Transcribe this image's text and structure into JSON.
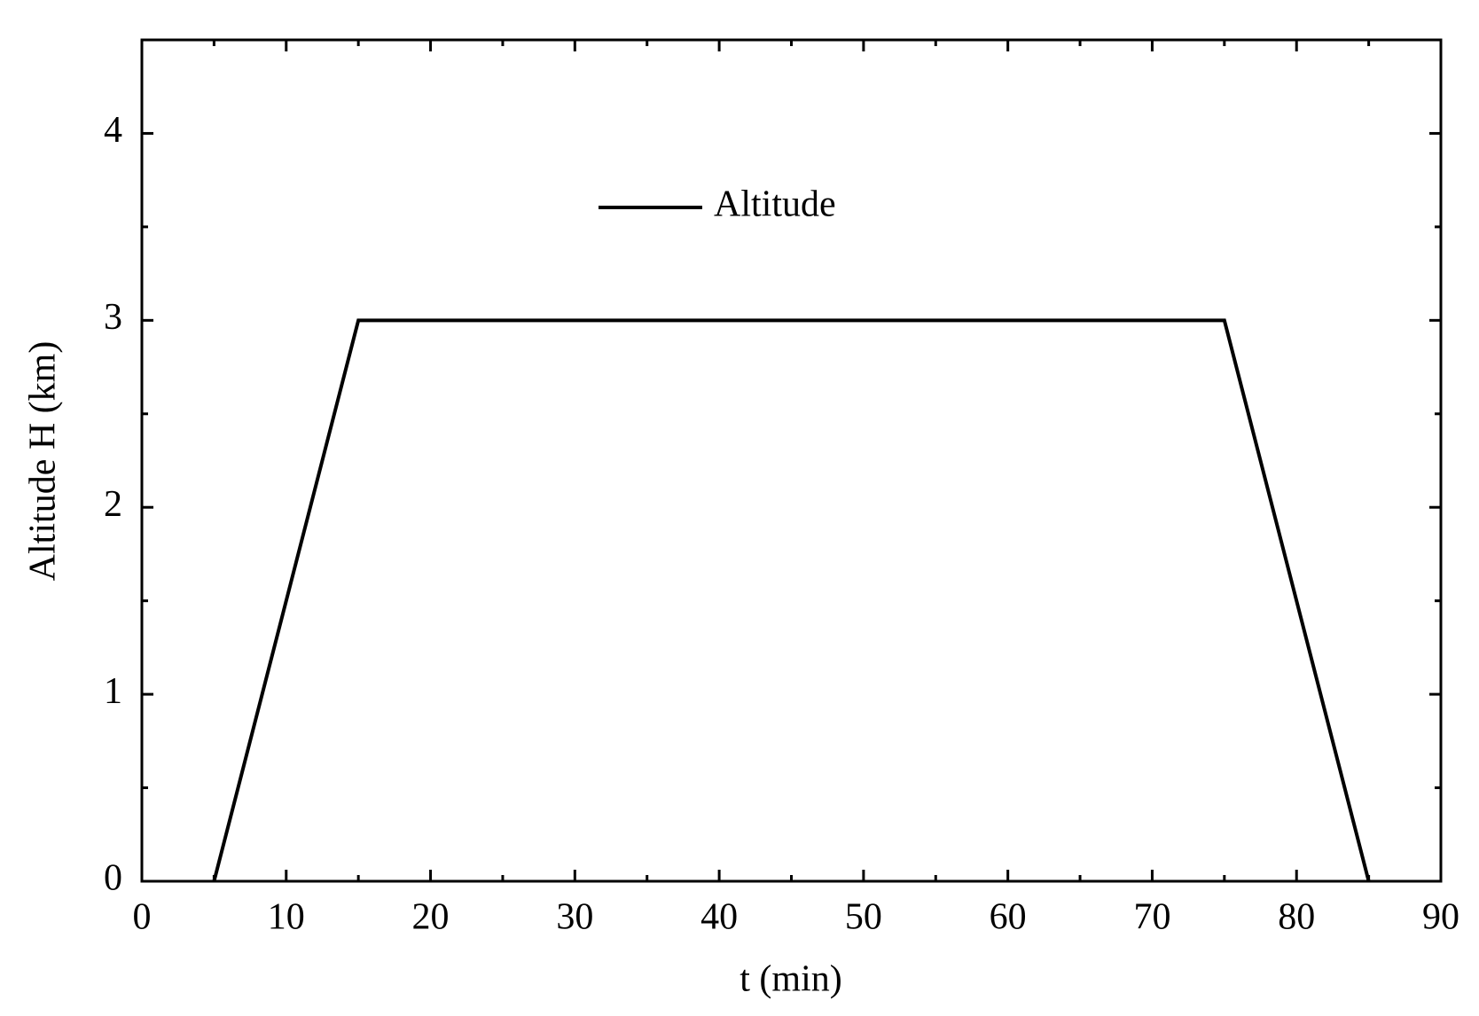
{
  "chart_data": {
    "type": "line",
    "x_label": "t (min)",
    "y_label": "Altitude H (km)",
    "x": [
      5,
      15,
      75,
      85
    ],
    "series": [
      {
        "name": "Altitude",
        "color": "#000000",
        "values": [
          0,
          3,
          3,
          0
        ]
      }
    ],
    "xlim": [
      0,
      90
    ],
    "xticks": [
      0,
      10,
      20,
      30,
      40,
      50,
      60,
      70,
      80,
      90
    ],
    "minor_xticks": [
      5,
      15,
      25,
      35,
      45,
      55,
      65,
      75,
      85
    ],
    "ylim": [
      0,
      4.5
    ],
    "yticks": [
      0,
      1,
      2,
      3,
      4
    ],
    "minor_yticks": [
      0.5,
      1.5,
      2.5,
      3.5,
      4.5
    ],
    "legend": "upper center",
    "grid": false
  }
}
